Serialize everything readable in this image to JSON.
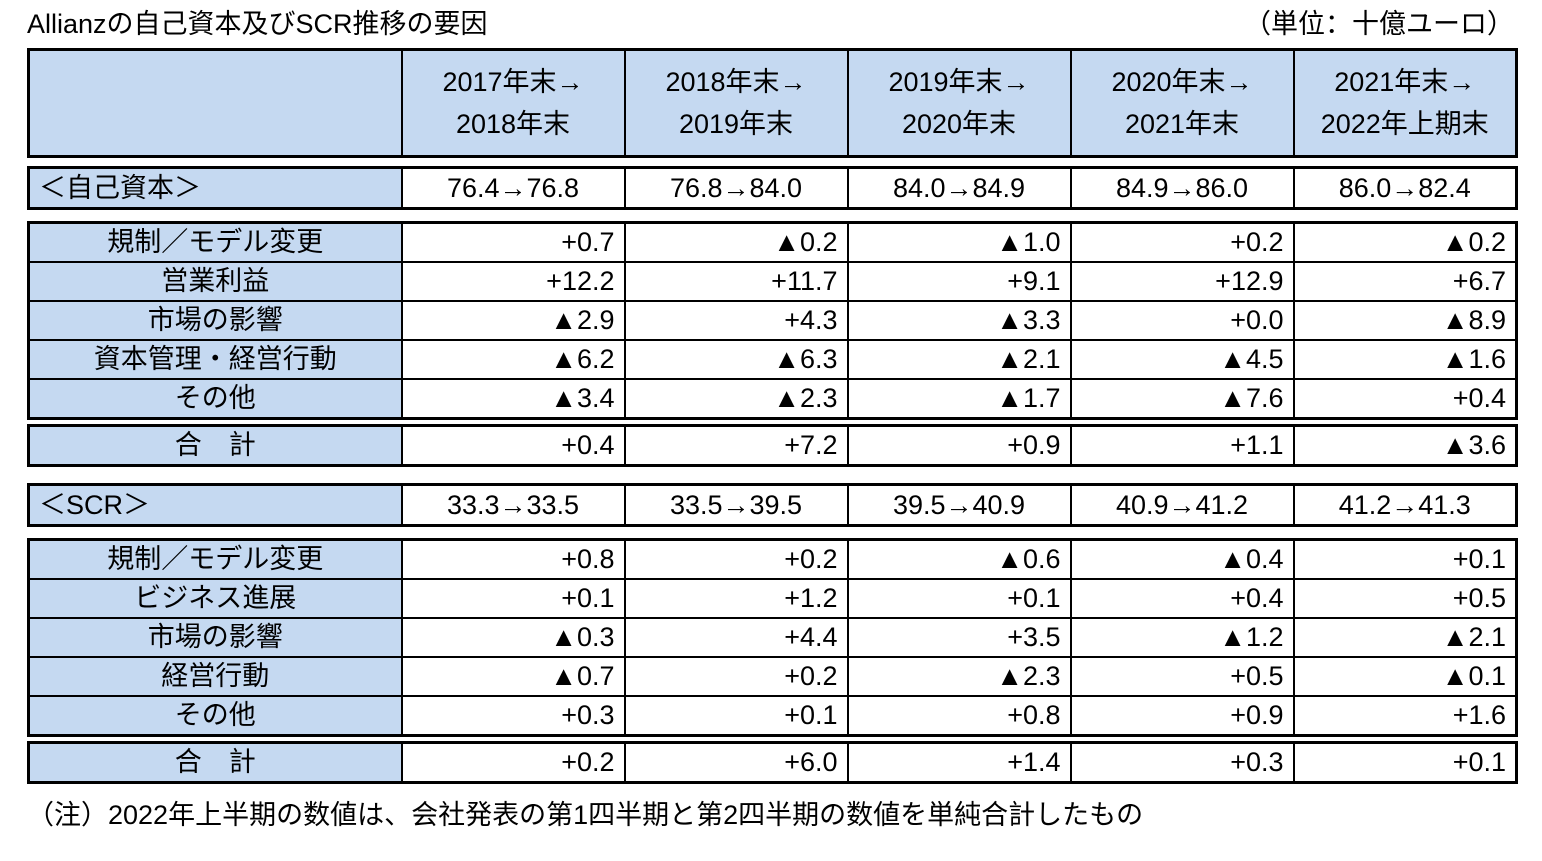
{
  "title": "Allianzの自己資本及びSCR推移の要因",
  "unit_label": "（単位：十億ユーロ）",
  "footnote": "（注）2022年上半期の数値は、会社発表の第1四半期と第2四半期の数値を単純合計したもの",
  "colors": {
    "header_fill": "#C5D9F1",
    "border": "#000000",
    "cell_fill": "#FFFFFF",
    "text": "#000000"
  },
  "negative_marker": "▲",
  "columns": [
    {
      "line1": "2017年末→",
      "line2": "2018年末"
    },
    {
      "line1": "2018年末→",
      "line2": "2019年末"
    },
    {
      "line1": "2019年末→",
      "line2": "2020年末"
    },
    {
      "line1": "2020年末→",
      "line2": "2021年末"
    },
    {
      "line1": "2021年末→",
      "line2": "2022年上期末"
    }
  ],
  "capital": {
    "label": "＜自己資本＞",
    "transition": [
      "76.4→76.8",
      "76.8→84.0",
      "84.0→84.9",
      "84.9→86.0",
      "86.0→82.4"
    ],
    "rows": [
      {
        "label": "規制／モデル変更",
        "values": [
          "+0.7",
          "▲0.2",
          "▲1.0",
          "+0.2",
          "▲0.2"
        ]
      },
      {
        "label": "営業利益",
        "values": [
          "+12.2",
          "+11.7",
          "+9.1",
          "+12.9",
          "+6.7"
        ]
      },
      {
        "label": "市場の影響",
        "values": [
          "▲2.9",
          "+4.3",
          "▲3.3",
          "+0.0",
          "▲8.9"
        ]
      },
      {
        "label": "資本管理・経営行動",
        "values": [
          "▲6.2",
          "▲6.3",
          "▲2.1",
          "▲4.5",
          "▲1.6"
        ]
      },
      {
        "label": "その他",
        "values": [
          "▲3.4",
          "▲2.3",
          "▲1.7",
          "▲7.6",
          "+0.4"
        ]
      }
    ],
    "total": {
      "label": "合　計",
      "values": [
        "+0.4",
        "+7.2",
        "+0.9",
        "+1.1",
        "▲3.6"
      ]
    }
  },
  "scr": {
    "label": "＜SCR＞",
    "transition": [
      "33.3→33.5",
      "33.5→39.5",
      "39.5→40.9",
      "40.9→41.2",
      "41.2→41.3"
    ],
    "rows": [
      {
        "label": "規制／モデル変更",
        "values": [
          "+0.8",
          "+0.2",
          "▲0.6",
          "▲0.4",
          "+0.1"
        ]
      },
      {
        "label": "ビジネス進展",
        "values": [
          "+0.1",
          "+1.2",
          "+0.1",
          "+0.4",
          "+0.5"
        ]
      },
      {
        "label": "市場の影響",
        "values": [
          "▲0.3",
          "+4.4",
          "+3.5",
          "▲1.2",
          "▲2.1"
        ]
      },
      {
        "label": "経営行動",
        "values": [
          "▲0.7",
          "+0.2",
          "▲2.3",
          "+0.5",
          "▲0.1"
        ]
      },
      {
        "label": "その他",
        "values": [
          "+0.3",
          "+0.1",
          "+0.8",
          "+0.9",
          "+1.6"
        ]
      }
    ],
    "total": {
      "label": "合　計",
      "values": [
        "+0.2",
        "+6.0",
        "+1.4",
        "+0.3",
        "+0.1"
      ]
    }
  },
  "chart_data": {
    "type": "table",
    "title": "Allianzの自己資本及びSCR推移の要因",
    "unit": "十億ユーロ",
    "columns": [
      "2017年末→2018年末",
      "2018年末→2019年末",
      "2019年末→2020年末",
      "2020年末→2021年末",
      "2021年末→2022年上期末"
    ],
    "sections": [
      {
        "name": "自己資本",
        "level_start": [
          76.4,
          76.8,
          84.0,
          84.9,
          86.0
        ],
        "level_end": [
          76.8,
          84.0,
          84.9,
          86.0,
          82.4
        ],
        "rows": [
          {
            "label": "規制／モデル変更",
            "values": [
              0.7,
              -0.2,
              -1.0,
              0.2,
              -0.2
            ]
          },
          {
            "label": "営業利益",
            "values": [
              12.2,
              11.7,
              9.1,
              12.9,
              6.7
            ]
          },
          {
            "label": "市場の影響",
            "values": [
              -2.9,
              4.3,
              -3.3,
              0.0,
              -8.9
            ]
          },
          {
            "label": "資本管理・経営行動",
            "values": [
              -6.2,
              -6.3,
              -2.1,
              -4.5,
              -1.6
            ]
          },
          {
            "label": "その他",
            "values": [
              -3.4,
              -2.3,
              -1.7,
              -7.6,
              0.4
            ]
          },
          {
            "label": "合計",
            "values": [
              0.4,
              7.2,
              0.9,
              1.1,
              -3.6
            ]
          }
        ]
      },
      {
        "name": "SCR",
        "level_start": [
          33.3,
          33.5,
          39.5,
          40.9,
          41.2
        ],
        "level_end": [
          33.5,
          39.5,
          40.9,
          41.2,
          41.3
        ],
        "rows": [
          {
            "label": "規制／モデル変更",
            "values": [
              0.8,
              0.2,
              -0.6,
              -0.4,
              0.1
            ]
          },
          {
            "label": "ビジネス進展",
            "values": [
              0.1,
              1.2,
              0.1,
              0.4,
              0.5
            ]
          },
          {
            "label": "市場の影響",
            "values": [
              -0.3,
              4.4,
              3.5,
              -1.2,
              -2.1
            ]
          },
          {
            "label": "経営行動",
            "values": [
              -0.7,
              0.2,
              -2.3,
              0.5,
              -0.1
            ]
          },
          {
            "label": "その他",
            "values": [
              0.3,
              0.1,
              0.8,
              0.9,
              1.6
            ]
          },
          {
            "label": "合計",
            "values": [
              0.2,
              6.0,
              1.4,
              0.3,
              0.1
            ]
          }
        ]
      }
    ]
  }
}
